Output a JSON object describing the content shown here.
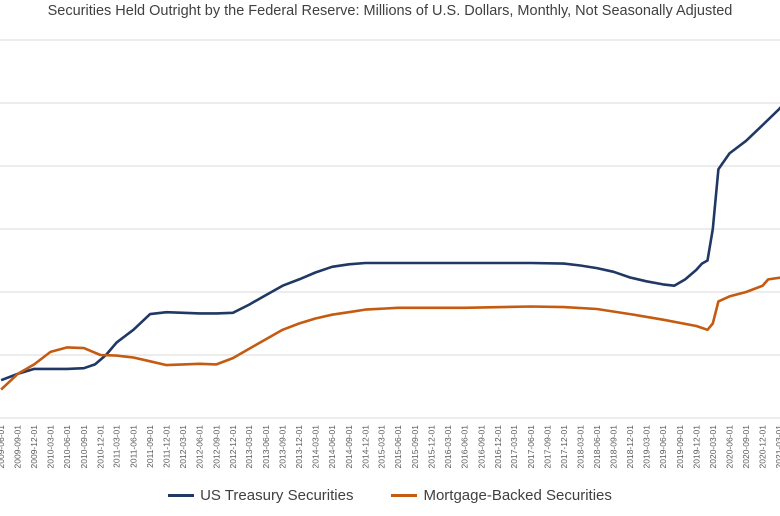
{
  "colors": {
    "treasury": "#203864",
    "mbs": "#C55A11",
    "grid": "#d9d9d9",
    "tick_text": "#595959"
  },
  "chart_data": {
    "type": "line",
    "title": "Securities Held Outright by the Federal Reserve: Millions of U.S. Dollars, Monthly, Not Seasonally Adjusted",
    "xlabel": "",
    "ylabel": "",
    "ylim": [
      0,
      6000000
    ],
    "y_gridlines": [
      0,
      1000000,
      2000000,
      3000000,
      4000000,
      5000000,
      6000000
    ],
    "x_tick_labels": [
      "2009-06-01",
      "2009-09-01",
      "2009-12-01",
      "2010-03-01",
      "2010-06-01",
      "2010-09-01",
      "2010-12-01",
      "2011-03-01",
      "2011-06-01",
      "2011-09-01",
      "2011-12-01",
      "2012-03-01",
      "2012-06-01",
      "2012-09-01",
      "2012-12-01",
      "2013-03-01",
      "2013-06-01",
      "2013-09-01",
      "2013-12-01",
      "2014-03-01",
      "2014-06-01",
      "2014-09-01",
      "2014-12-01",
      "2015-03-01",
      "2015-06-01",
      "2015-09-01",
      "2015-12-01",
      "2016-03-01",
      "2016-06-01",
      "2016-09-01",
      "2016-12-01",
      "2017-03-01",
      "2017-06-01",
      "2017-09-01",
      "2017-12-01",
      "2018-03-01",
      "2018-06-01",
      "2018-09-01",
      "2018-12-01",
      "2019-03-01",
      "2019-06-01",
      "2019-09-01",
      "2019-12-01",
      "2020-03-01",
      "2020-06-01",
      "2020-09-01",
      "2020-12-01",
      "2021-03-01"
    ],
    "legend_position": "bottom",
    "grid": true,
    "series": [
      {
        "name": "US Treasury Securities",
        "points": [
          [
            "2009-06-01",
            600000
          ],
          [
            "2009-09-01",
            700000
          ],
          [
            "2009-12-01",
            780000
          ],
          [
            "2010-06-01",
            780000
          ],
          [
            "2010-09-01",
            790000
          ],
          [
            "2010-11-01",
            850000
          ],
          [
            "2011-01-01",
            1000000
          ],
          [
            "2011-03-01",
            1200000
          ],
          [
            "2011-06-01",
            1400000
          ],
          [
            "2011-09-01",
            1650000
          ],
          [
            "2011-12-01",
            1680000
          ],
          [
            "2012-03-01",
            1670000
          ],
          [
            "2012-06-01",
            1660000
          ],
          [
            "2012-09-01",
            1660000
          ],
          [
            "2012-12-01",
            1670000
          ],
          [
            "2013-03-01",
            1800000
          ],
          [
            "2013-06-01",
            1950000
          ],
          [
            "2013-09-01",
            2100000
          ],
          [
            "2013-12-01",
            2200000
          ],
          [
            "2014-03-01",
            2310000
          ],
          [
            "2014-06-01",
            2400000
          ],
          [
            "2014-09-01",
            2440000
          ],
          [
            "2014-12-01",
            2460000
          ],
          [
            "2015-06-01",
            2460000
          ],
          [
            "2016-06-01",
            2460000
          ],
          [
            "2017-06-01",
            2460000
          ],
          [
            "2017-12-01",
            2450000
          ],
          [
            "2018-03-01",
            2420000
          ],
          [
            "2018-06-01",
            2380000
          ],
          [
            "2018-09-01",
            2320000
          ],
          [
            "2018-12-01",
            2230000
          ],
          [
            "2019-03-01",
            2170000
          ],
          [
            "2019-06-01",
            2120000
          ],
          [
            "2019-08-01",
            2100000
          ],
          [
            "2019-10-01",
            2200000
          ],
          [
            "2019-12-01",
            2350000
          ],
          [
            "2020-01-01",
            2450000
          ],
          [
            "2020-02-01",
            2500000
          ],
          [
            "2020-03-01",
            3000000
          ],
          [
            "2020-04-01",
            3950000
          ],
          [
            "2020-06-01",
            4200000
          ],
          [
            "2020-09-01",
            4400000
          ],
          [
            "2020-12-01",
            4650000
          ],
          [
            "2021-03-01",
            4900000
          ],
          [
            "2021-05-01",
            5100000
          ]
        ]
      },
      {
        "name": "Mortgage-Backed Securities",
        "points": [
          [
            "2009-06-01",
            450000
          ],
          [
            "2009-09-01",
            700000
          ],
          [
            "2009-12-01",
            850000
          ],
          [
            "2010-03-01",
            1050000
          ],
          [
            "2010-06-01",
            1120000
          ],
          [
            "2010-09-01",
            1110000
          ],
          [
            "2010-12-01",
            1000000
          ],
          [
            "2011-03-01",
            990000
          ],
          [
            "2011-06-01",
            960000
          ],
          [
            "2011-09-01",
            900000
          ],
          [
            "2011-12-01",
            840000
          ],
          [
            "2012-03-01",
            850000
          ],
          [
            "2012-06-01",
            860000
          ],
          [
            "2012-09-01",
            850000
          ],
          [
            "2012-12-01",
            950000
          ],
          [
            "2013-03-01",
            1100000
          ],
          [
            "2013-06-01",
            1250000
          ],
          [
            "2013-09-01",
            1400000
          ],
          [
            "2013-12-01",
            1500000
          ],
          [
            "2014-03-01",
            1580000
          ],
          [
            "2014-06-01",
            1640000
          ],
          [
            "2014-09-01",
            1680000
          ],
          [
            "2014-12-01",
            1720000
          ],
          [
            "2015-06-01",
            1750000
          ],
          [
            "2016-06-01",
            1750000
          ],
          [
            "2017-06-01",
            1770000
          ],
          [
            "2017-12-01",
            1760000
          ],
          [
            "2018-06-01",
            1730000
          ],
          [
            "2018-12-01",
            1650000
          ],
          [
            "2019-06-01",
            1560000
          ],
          [
            "2019-12-01",
            1460000
          ],
          [
            "2020-02-01",
            1400000
          ],
          [
            "2020-03-01",
            1500000
          ],
          [
            "2020-04-01",
            1850000
          ],
          [
            "2020-06-01",
            1930000
          ],
          [
            "2020-09-01",
            2000000
          ],
          [
            "2020-12-01",
            2100000
          ],
          [
            "2021-01-01",
            2200000
          ],
          [
            "2021-05-01",
            2250000
          ]
        ]
      }
    ]
  }
}
